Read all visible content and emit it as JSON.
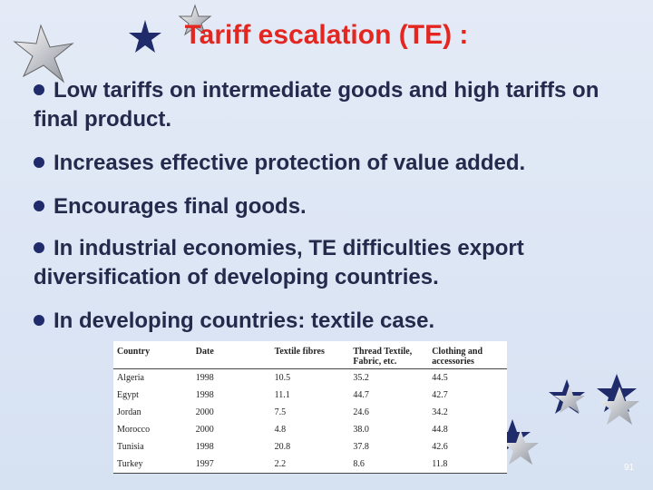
{
  "title": "Tariff escalation (TE) :",
  "bullets": [
    "Low tariffs on intermediate goods and high tariffs on final product.",
    "Increases effective protection of value added.",
    "Encourages final goods.",
    "In industrial economies, TE difficulties export diversification of developing countries.",
    "In developing countries: textile case."
  ],
  "table": {
    "header": [
      "Country",
      "Date",
      "Textile fibres",
      "Thread Textile, Fabric, etc.",
      "Clothing and accessories"
    ],
    "rows": [
      [
        "Algeria",
        "1998",
        "10.5",
        "35.2",
        "44.5"
      ],
      [
        "Egypt",
        "1998",
        "11.1",
        "44.7",
        "42.7"
      ],
      [
        "Jordan",
        "2000",
        "7.5",
        "24.6",
        "34.2"
      ],
      [
        "Morocco",
        "2000",
        "4.8",
        "38.0",
        "44.8"
      ],
      [
        "Tunisia",
        "1998",
        "20.8",
        "37.8",
        "42.6"
      ],
      [
        "Turkey",
        "1997",
        "2.2",
        "8.6",
        "11.8"
      ]
    ]
  },
  "page_number": "91"
}
